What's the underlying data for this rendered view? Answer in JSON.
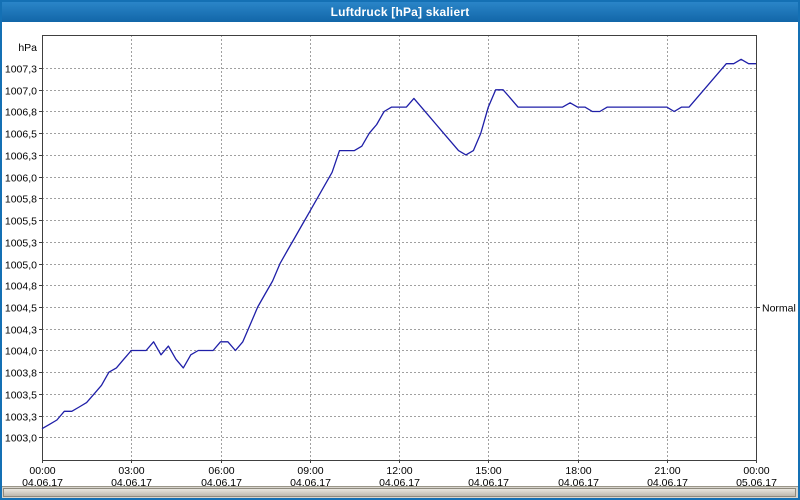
{
  "window": {
    "title": "Luftdruck [hPa] skaliert"
  },
  "colors": {
    "line": "#1f1fa8",
    "window_border": "#1470b4",
    "grid": "#a0a0a0"
  },
  "chart_data": {
    "type": "line",
    "title": "Luftdruck [hPa] skaliert",
    "ylabel": "hPa",
    "xlim": [
      0,
      24
    ],
    "ylim": [
      1002.74,
      1007.63
    ],
    "grid": "on",
    "x_start_hours": 0,
    "x_step_hours": 0.25,
    "series": [
      {
        "name": "Luftdruck",
        "color": "#1f1fa8",
        "values": [
          1003.1,
          1003.15,
          1003.2,
          1003.3,
          1003.3,
          1003.35,
          1003.4,
          1003.5,
          1003.6,
          1003.75,
          1003.8,
          1003.9,
          1004.0,
          1004.0,
          1004.0,
          1004.1,
          1003.95,
          1004.05,
          1003.9,
          1003.8,
          1003.95,
          1004.0,
          1004.0,
          1004.0,
          1004.1,
          1004.1,
          1004.0,
          1004.1,
          1004.3,
          1004.5,
          1004.65,
          1004.8,
          1005.0,
          1005.15,
          1005.3,
          1005.45,
          1005.6,
          1005.75,
          1005.9,
          1006.05,
          1006.3,
          1006.3,
          1006.3,
          1006.35,
          1006.5,
          1006.6,
          1006.75,
          1006.8,
          1006.8,
          1006.8,
          1006.9,
          1006.8,
          1006.7,
          1006.6,
          1006.5,
          1006.4,
          1006.3,
          1006.25,
          1006.3,
          1006.5,
          1006.8,
          1007.0,
          1007.0,
          1006.9,
          1006.8,
          1006.8,
          1006.8,
          1006.8,
          1006.8,
          1006.8,
          1006.8,
          1006.85,
          1006.8,
          1006.8,
          1006.75,
          1006.75,
          1006.8,
          1006.8,
          1006.8,
          1006.8,
          1006.8,
          1006.8,
          1006.8,
          1006.8,
          1006.8,
          1006.75,
          1006.8,
          1006.8,
          1006.9,
          1007.0,
          1007.1,
          1007.2,
          1007.3,
          1007.3,
          1007.35,
          1007.3,
          1007.3
        ]
      }
    ],
    "y_ticks": [
      {
        "value": 1003.0,
        "label": "1003,0"
      },
      {
        "value": 1003.25,
        "label": "1003,3"
      },
      {
        "value": 1003.5,
        "label": "1003,5"
      },
      {
        "value": 1003.75,
        "label": "1003,8"
      },
      {
        "value": 1004.0,
        "label": "1004,0"
      },
      {
        "value": 1004.25,
        "label": "1004,3"
      },
      {
        "value": 1004.5,
        "label": "1004,5"
      },
      {
        "value": 1004.75,
        "label": "1004,8"
      },
      {
        "value": 1005.0,
        "label": "1005,0"
      },
      {
        "value": 1005.25,
        "label": "1005,3"
      },
      {
        "value": 1005.5,
        "label": "1005,5"
      },
      {
        "value": 1005.75,
        "label": "1005,8"
      },
      {
        "value": 1006.0,
        "label": "1006,0"
      },
      {
        "value": 1006.25,
        "label": "1006,3"
      },
      {
        "value": 1006.5,
        "label": "1006,5"
      },
      {
        "value": 1006.75,
        "label": "1006,8"
      },
      {
        "value": 1007.0,
        "label": "1007,0"
      },
      {
        "value": 1007.25,
        "label": "1007,3"
      }
    ],
    "x_ticks": [
      {
        "hour": 0,
        "time": "00:00",
        "date": "04.06.17"
      },
      {
        "hour": 3,
        "time": "03:00",
        "date": "04.06.17"
      },
      {
        "hour": 6,
        "time": "06:00",
        "date": "04.06.17"
      },
      {
        "hour": 9,
        "time": "09:00",
        "date": "04.06.17"
      },
      {
        "hour": 12,
        "time": "12:00",
        "date": "04.06.17"
      },
      {
        "hour": 15,
        "time": "15:00",
        "date": "04.06.17"
      },
      {
        "hour": 18,
        "time": "18:00",
        "date": "04.06.17"
      },
      {
        "hour": 21,
        "time": "21:00",
        "date": "04.06.17"
      },
      {
        "hour": 24,
        "time": "00:00",
        "date": "05.06.17"
      }
    ],
    "normal_marker": {
      "label": "Normal",
      "value": 1004.5
    }
  }
}
